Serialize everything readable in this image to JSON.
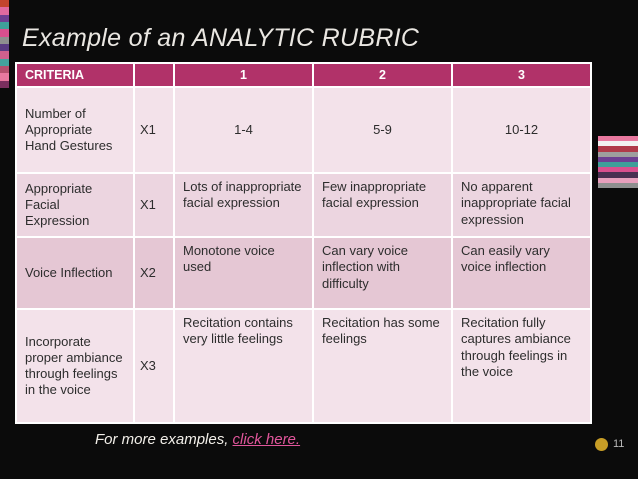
{
  "slide": {
    "title": "Example of an ANALYTIC RUBRIC",
    "page_number": "11"
  },
  "table": {
    "headers": [
      "CRITERIA",
      "",
      "1",
      "2",
      "3"
    ],
    "rows": [
      {
        "criteria": "Number of Appropriate Hand Gestures",
        "multiplier": "X1",
        "level1": "1-4",
        "level2": "5-9",
        "level3": "10-12"
      },
      {
        "criteria": "Appropriate Facial Expression",
        "multiplier": "X1",
        "level1": "Lots of inappropriate facial expression",
        "level2": "Few inappropriate facial expression",
        "level3": "No apparent inappropriate facial expression"
      },
      {
        "criteria": "Voice Inflection",
        "multiplier": "X2",
        "level1": "Monotone voice used",
        "level2": "Can vary voice inflection with difficulty",
        "level3": "Can easily vary voice inflection"
      },
      {
        "criteria": "Incorporate proper ambiance through feelings in the voice",
        "multiplier": "X3",
        "level1": "Recitation contains very little feelings",
        "level2": "Recitation has some feelings",
        "level3": "Recitation fully captures ambiance through feelings in the voice"
      }
    ]
  },
  "footer": {
    "text": "For more examples,",
    "link_text": "click here."
  },
  "colors": {
    "header_bg": "#b13269",
    "row_light": "#f3e2ea",
    "row_medium": "#ecd5e0",
    "row_dark": "#e5c7d4",
    "link_color": "#e0569b",
    "dot_color": "#c79d26"
  },
  "decoration": {
    "left_stripes": [
      "#c2452e",
      "#e06aa0",
      "#6e3f93",
      "#3f9f9a",
      "#d94f8e",
      "#8f8f8f",
      "#5a3b82",
      "#d0608e",
      "#44a39d",
      "#b5506e",
      "#e8789f",
      "#7a2f5e"
    ],
    "right_stripes": [
      "#e8789f",
      "#f2f2f2",
      "#b03a4a",
      "#9e9e9e",
      "#6e3f93",
      "#3f9f9a",
      "#d94f8e",
      "#4a2f52",
      "#e8a0bd",
      "#8f8f8f"
    ]
  }
}
